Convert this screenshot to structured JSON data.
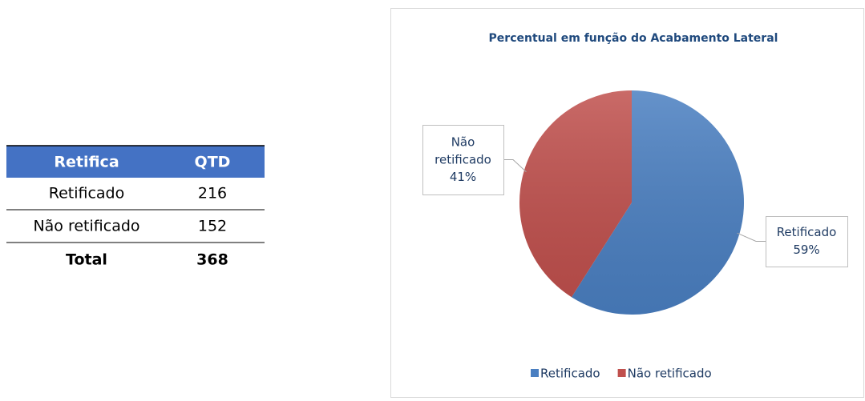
{
  "table": {
    "header": [
      "Retifica",
      "QTD"
    ],
    "rows": [
      [
        "Retificado",
        216
      ],
      [
        "Não retificado",
        152
      ]
    ],
    "total": [
      "Total",
      368
    ]
  },
  "chart_data": {
    "type": "pie",
    "title": "Percentual em função do Acabamento Lateral",
    "categories": [
      "Retificado",
      "Não retificado"
    ],
    "values": [
      59,
      41
    ],
    "value_labels": [
      "59%",
      "41%"
    ],
    "colors": [
      "#4a7fc1",
      "#c0504d"
    ],
    "legend": "bottom"
  }
}
